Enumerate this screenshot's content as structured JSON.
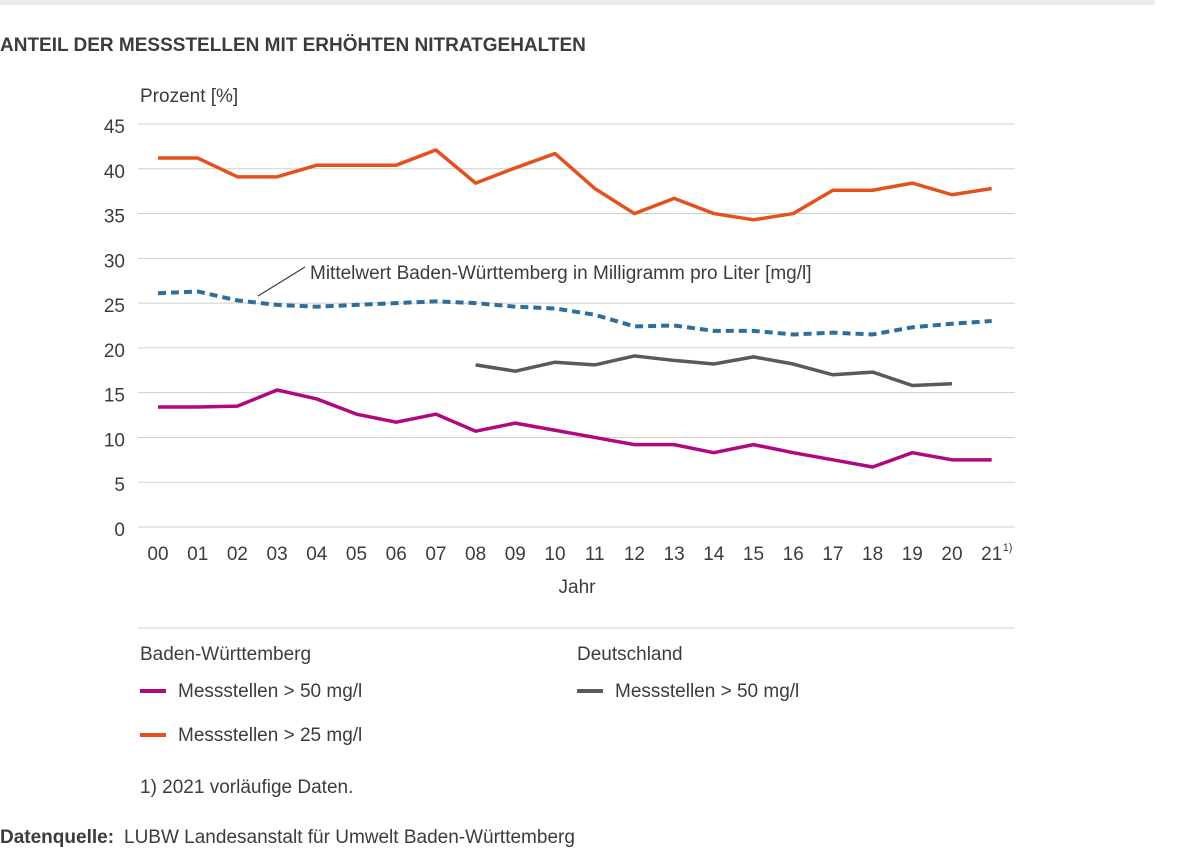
{
  "chart_data": {
    "type": "line",
    "title": "ANTEIL DER MESSSTELLEN MIT ERHÖHTEN NITRATGEHALTEN",
    "y_label": "Prozent [%]",
    "x_label": "Jahr",
    "categories": [
      "00",
      "01",
      "02",
      "03",
      "04",
      "05",
      "06",
      "07",
      "08",
      "09",
      "10",
      "11",
      "12",
      "13",
      "14",
      "15",
      "16",
      "17",
      "18",
      "19",
      "20",
      "21"
    ],
    "category_footnote_mark": "1)",
    "ylim": [
      0,
      45
    ],
    "yticks": [
      0,
      5,
      10,
      15,
      20,
      25,
      30,
      35,
      40,
      45
    ],
    "grid": true,
    "legend_groups": [
      "Baden-Württemberg",
      "Deutschland"
    ],
    "series": [
      {
        "name": "Messstellen > 50 mg/l",
        "color": "#b0097f",
        "values": [
          13.4,
          13.4,
          13.5,
          15.3,
          14.3,
          12.6,
          11.7,
          12.6,
          10.7,
          11.6,
          10.8,
          10,
          9.2,
          9.2,
          8.3,
          9.2,
          8.3,
          7.5,
          6.7,
          8.3,
          7.5,
          7.5
        ]
      },
      {
        "name": "Messstellen > 25 mg/l",
        "color": "#e4501e",
        "values": [
          41.2,
          41.2,
          39.1,
          39.1,
          40.4,
          40.4,
          40.4,
          42.1,
          38.4,
          40.1,
          41.7,
          37.8,
          35,
          36.7,
          35,
          34.3,
          35,
          37.6,
          37.6,
          38.4,
          37.1,
          37.8
        ]
      },
      {
        "name": "Mittelwert Baden-Württemberg in Milligramm pro Liter [mg/l]",
        "color": "#2f6d9a",
        "dashed": true,
        "values": [
          26.1,
          26.3,
          25.3,
          24.8,
          24.6,
          24.8,
          25,
          25.2,
          25,
          24.6,
          24.4,
          23.7,
          22.4,
          22.5,
          21.9,
          21.9,
          21.5,
          21.7,
          21.5,
          22.3,
          22.7,
          23
        ]
      },
      {
        "name": "Messstellen > 50 mg/l",
        "color": "#5a5a5a",
        "values": [
          null,
          null,
          null,
          null,
          null,
          null,
          null,
          null,
          18.1,
          17.4,
          18.4,
          18.1,
          19.1,
          18.6,
          18.2,
          19,
          18.2,
          17,
          17.3,
          15.8,
          16,
          null
        ]
      }
    ],
    "footnote": "1) 2021 vorläufige Daten.",
    "source_label": "Datenquelle:",
    "source": "LUBW Landesanstalt für Umwelt Baden-Württemberg"
  }
}
